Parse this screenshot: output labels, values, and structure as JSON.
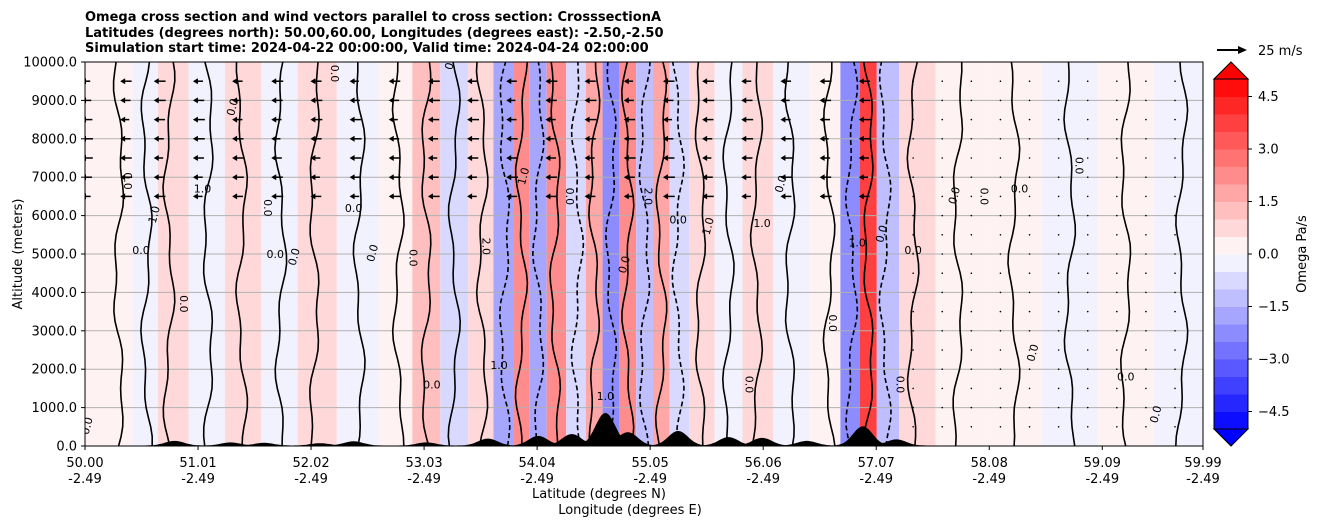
{
  "chart_data": {
    "type": "heatmap",
    "title_lines": [
      "Omega cross section and wind vectors parallel to cross section: CrosssectionA",
      "Latitudes (degrees north): 50.00,60.00, Longitudes (degrees east): -2.50,-2.50",
      "Simulation start time: 2024-04-22 00:00:00, Valid time: 2024-04-24 02:00:00"
    ],
    "xlabel_lat": "Latitude (degrees N)",
    "xlabel_lon": "Longitude (degrees E)",
    "ylabel": "Altitude (meters)",
    "xlim": [
      50.0,
      59.99
    ],
    "ylim": [
      0,
      10000
    ],
    "x_ticks": [
      {
        "lat": "50.00",
        "lon": "-2.49",
        "value": 50.0
      },
      {
        "lat": "51.01",
        "lon": "-2.49",
        "value": 51.01
      },
      {
        "lat": "52.02",
        "lon": "-2.49",
        "value": 52.02
      },
      {
        "lat": "53.03",
        "lon": "-2.49",
        "value": 53.03
      },
      {
        "lat": "54.04",
        "lon": "-2.49",
        "value": 54.04
      },
      {
        "lat": "55.05",
        "lon": "-2.49",
        "value": 55.05
      },
      {
        "lat": "56.06",
        "lon": "-2.49",
        "value": 56.06
      },
      {
        "lat": "57.07",
        "lon": "-2.49",
        "value": 57.07
      },
      {
        "lat": "58.08",
        "lon": "-2.49",
        "value": 58.08
      },
      {
        "lat": "59.09",
        "lon": "-2.49",
        "value": 59.09
      },
      {
        "lat": "59.99",
        "lon": "-2.49",
        "value": 59.99
      }
    ],
    "y_ticks": [
      {
        "label": "0.0",
        "value": 0
      },
      {
        "label": "1000.0",
        "value": 1000
      },
      {
        "label": "2000.0",
        "value": 2000
      },
      {
        "label": "3000.0",
        "value": 3000
      },
      {
        "label": "4000.0",
        "value": 4000
      },
      {
        "label": "5000.0",
        "value": 5000
      },
      {
        "label": "6000.0",
        "value": 6000
      },
      {
        "label": "7000.0",
        "value": 7000
      },
      {
        "label": "8000.0",
        "value": 8000
      },
      {
        "label": "9000.0",
        "value": 9000
      },
      {
        "label": "10000.0",
        "value": 10000
      }
    ],
    "grid_y": true,
    "colorbar": {
      "label": "Omega Pa/s",
      "min": -5.0,
      "max": 5.0,
      "n_levels": 20,
      "ticks": [
        {
          "label": "4.5",
          "value": 4.5
        },
        {
          "label": "3.0",
          "value": 3.0
        },
        {
          "label": "1.5",
          "value": 1.5
        },
        {
          "label": "0.0",
          "value": 0.0
        },
        {
          "label": "−1.5",
          "value": -1.5
        },
        {
          "label": "−3.0",
          "value": -3.0
        },
        {
          "label": "−4.5",
          "value": -4.5
        }
      ],
      "colormap": "bwr",
      "extend": "both"
    },
    "quiver_key": {
      "label": "25 m/s",
      "value": 25
    },
    "omega_bands": [
      {
        "lat": 50.3,
        "value": 0.3
      },
      {
        "lat": 50.55,
        "value": -0.3
      },
      {
        "lat": 50.75,
        "value": 0.8
      },
      {
        "lat": 51.1,
        "value": -0.5
      },
      {
        "lat": 51.4,
        "value": 0.6
      },
      {
        "lat": 51.75,
        "value": -0.3
      },
      {
        "lat": 52.05,
        "value": 0.5
      },
      {
        "lat": 52.45,
        "value": -0.4
      },
      {
        "lat": 52.8,
        "value": 0.4
      },
      {
        "lat": 53.05,
        "value": 1.0
      },
      {
        "lat": 53.3,
        "value": -0.6
      },
      {
        "lat": 53.55,
        "value": 0.6
      },
      {
        "lat": 53.75,
        "value": -1.8
      },
      {
        "lat": 53.9,
        "value": 2.2
      },
      {
        "lat": 54.05,
        "value": -2.0
      },
      {
        "lat": 54.2,
        "value": 2.4
      },
      {
        "lat": 54.4,
        "value": -1.0
      },
      {
        "lat": 54.55,
        "value": 1.5
      },
      {
        "lat": 54.7,
        "value": -2.5
      },
      {
        "lat": 54.85,
        "value": 2.0
      },
      {
        "lat": 55.0,
        "value": -1.5
      },
      {
        "lat": 55.15,
        "value": 1.8
      },
      {
        "lat": 55.3,
        "value": -1.0
      },
      {
        "lat": 55.5,
        "value": 0.8
      },
      {
        "lat": 55.75,
        "value": -0.5
      },
      {
        "lat": 56.0,
        "value": 0.6
      },
      {
        "lat": 56.3,
        "value": -0.4
      },
      {
        "lat": 56.65,
        "value": 0.4
      },
      {
        "lat": 56.85,
        "value": -2.5
      },
      {
        "lat": 57.0,
        "value": 3.5
      },
      {
        "lat": 57.15,
        "value": -1.5
      },
      {
        "lat": 57.4,
        "value": 0.5
      },
      {
        "lat": 57.8,
        "value": 0.2
      },
      {
        "lat": 58.3,
        "value": 0.3
      },
      {
        "lat": 58.8,
        "value": -0.2
      },
      {
        "lat": 59.3,
        "value": 0.2
      },
      {
        "lat": 59.8,
        "value": -0.2
      }
    ],
    "contour_labels": [
      {
        "text": "0.0",
        "lat": 50.05,
        "alt": 500
      },
      {
        "text": "0.0",
        "lat": 50.35,
        "alt": 6900
      },
      {
        "text": "0.0",
        "lat": 50.5,
        "alt": 5000
      },
      {
        "text": "1.0",
        "lat": 50.65,
        "alt": 6000
      },
      {
        "text": "0.0",
        "lat": 50.85,
        "alt": 3700
      },
      {
        "text": "1.0",
        "lat": 51.05,
        "alt": 6600
      },
      {
        "text": "0.0",
        "lat": 51.35,
        "alt": 8800
      },
      {
        "text": "0.0",
        "lat": 51.6,
        "alt": 6200
      },
      {
        "text": "0.0",
        "lat": 51.7,
        "alt": 4900
      },
      {
        "text": "0.0",
        "lat": 51.9,
        "alt": 4900
      },
      {
        "text": "0.0",
        "lat": 52.2,
        "alt": 9700
      },
      {
        "text": "0.0",
        "lat": 52.4,
        "alt": 6100
      },
      {
        "text": "0.0",
        "lat": 52.6,
        "alt": 5000
      },
      {
        "text": "0.0",
        "lat": 52.9,
        "alt": 4900
      },
      {
        "text": "0.0",
        "lat": 53.1,
        "alt": 1500
      },
      {
        "text": "0.0",
        "lat": 53.3,
        "alt": 10000
      },
      {
        "text": "2.0",
        "lat": 53.55,
        "alt": 5200
      },
      {
        "text": "1.0",
        "lat": 53.7,
        "alt": 2000
      },
      {
        "text": "1.0",
        "lat": 53.95,
        "alt": 7000
      },
      {
        "text": "0.0",
        "lat": 54.3,
        "alt": 6500
      },
      {
        "text": "1.0",
        "lat": 54.65,
        "alt": 1200
      },
      {
        "text": "0.0",
        "lat": 54.85,
        "alt": 4700
      },
      {
        "text": "2.0",
        "lat": 55.0,
        "alt": 6500
      },
      {
        "text": "0.0",
        "lat": 55.3,
        "alt": 5800
      },
      {
        "text": "1.0",
        "lat": 55.6,
        "alt": 5700
      },
      {
        "text": "0.0",
        "lat": 55.9,
        "alt": 1600
      },
      {
        "text": "1.0",
        "lat": 56.05,
        "alt": 5700
      },
      {
        "text": "0.0",
        "lat": 56.25,
        "alt": 6800
      },
      {
        "text": "0.0",
        "lat": 56.65,
        "alt": 3200
      },
      {
        "text": "1.0",
        "lat": 56.9,
        "alt": 5200
      },
      {
        "text": "0.0",
        "lat": 57.15,
        "alt": 5500
      },
      {
        "text": "0.0",
        "lat": 57.25,
        "alt": 1600
      },
      {
        "text": "0.0",
        "lat": 57.4,
        "alt": 5000
      },
      {
        "text": "0.0",
        "lat": 57.8,
        "alt": 6500
      },
      {
        "text": "0.0",
        "lat": 58.0,
        "alt": 6500
      },
      {
        "text": "0.0",
        "lat": 58.35,
        "alt": 6600
      },
      {
        "text": "0.0",
        "lat": 58.5,
        "alt": 2400
      },
      {
        "text": "0.0",
        "lat": 58.85,
        "alt": 7300
      },
      {
        "text": "0.0",
        "lat": 59.3,
        "alt": 1700
      },
      {
        "text": "0.0",
        "lat": 59.6,
        "alt": 800
      }
    ],
    "terrain_peaks": [
      {
        "lat": 50.8,
        "height": 120
      },
      {
        "lat": 51.3,
        "height": 80
      },
      {
        "lat": 51.6,
        "height": 70
      },
      {
        "lat": 52.1,
        "height": 60
      },
      {
        "lat": 52.4,
        "height": 110
      },
      {
        "lat": 53.05,
        "height": 80
      },
      {
        "lat": 53.6,
        "height": 180
      },
      {
        "lat": 54.05,
        "height": 250
      },
      {
        "lat": 54.35,
        "height": 300
      },
      {
        "lat": 54.65,
        "height": 850
      },
      {
        "lat": 54.85,
        "height": 350
      },
      {
        "lat": 55.3,
        "height": 380
      },
      {
        "lat": 55.75,
        "height": 220
      },
      {
        "lat": 56.05,
        "height": 200
      },
      {
        "lat": 56.45,
        "height": 120
      },
      {
        "lat": 56.95,
        "height": 500
      },
      {
        "lat": 57.25,
        "height": 160
      }
    ],
    "wind_vectors": {
      "lat_min": 50.0,
      "lat_max": 57.25,
      "u_max_upper": -6,
      "strong_columns": [
        50.0,
        50.35,
        50.65,
        51.0,
        51.35,
        51.7,
        52.05,
        52.4,
        52.75,
        53.1,
        53.45,
        53.8,
        54.15,
        54.5,
        54.85,
        55.2,
        55.55,
        55.9,
        56.25,
        56.6,
        56.95
      ],
      "levels": [
        6500,
        7000,
        7500,
        8000,
        8500,
        9000,
        9500
      ]
    }
  }
}
